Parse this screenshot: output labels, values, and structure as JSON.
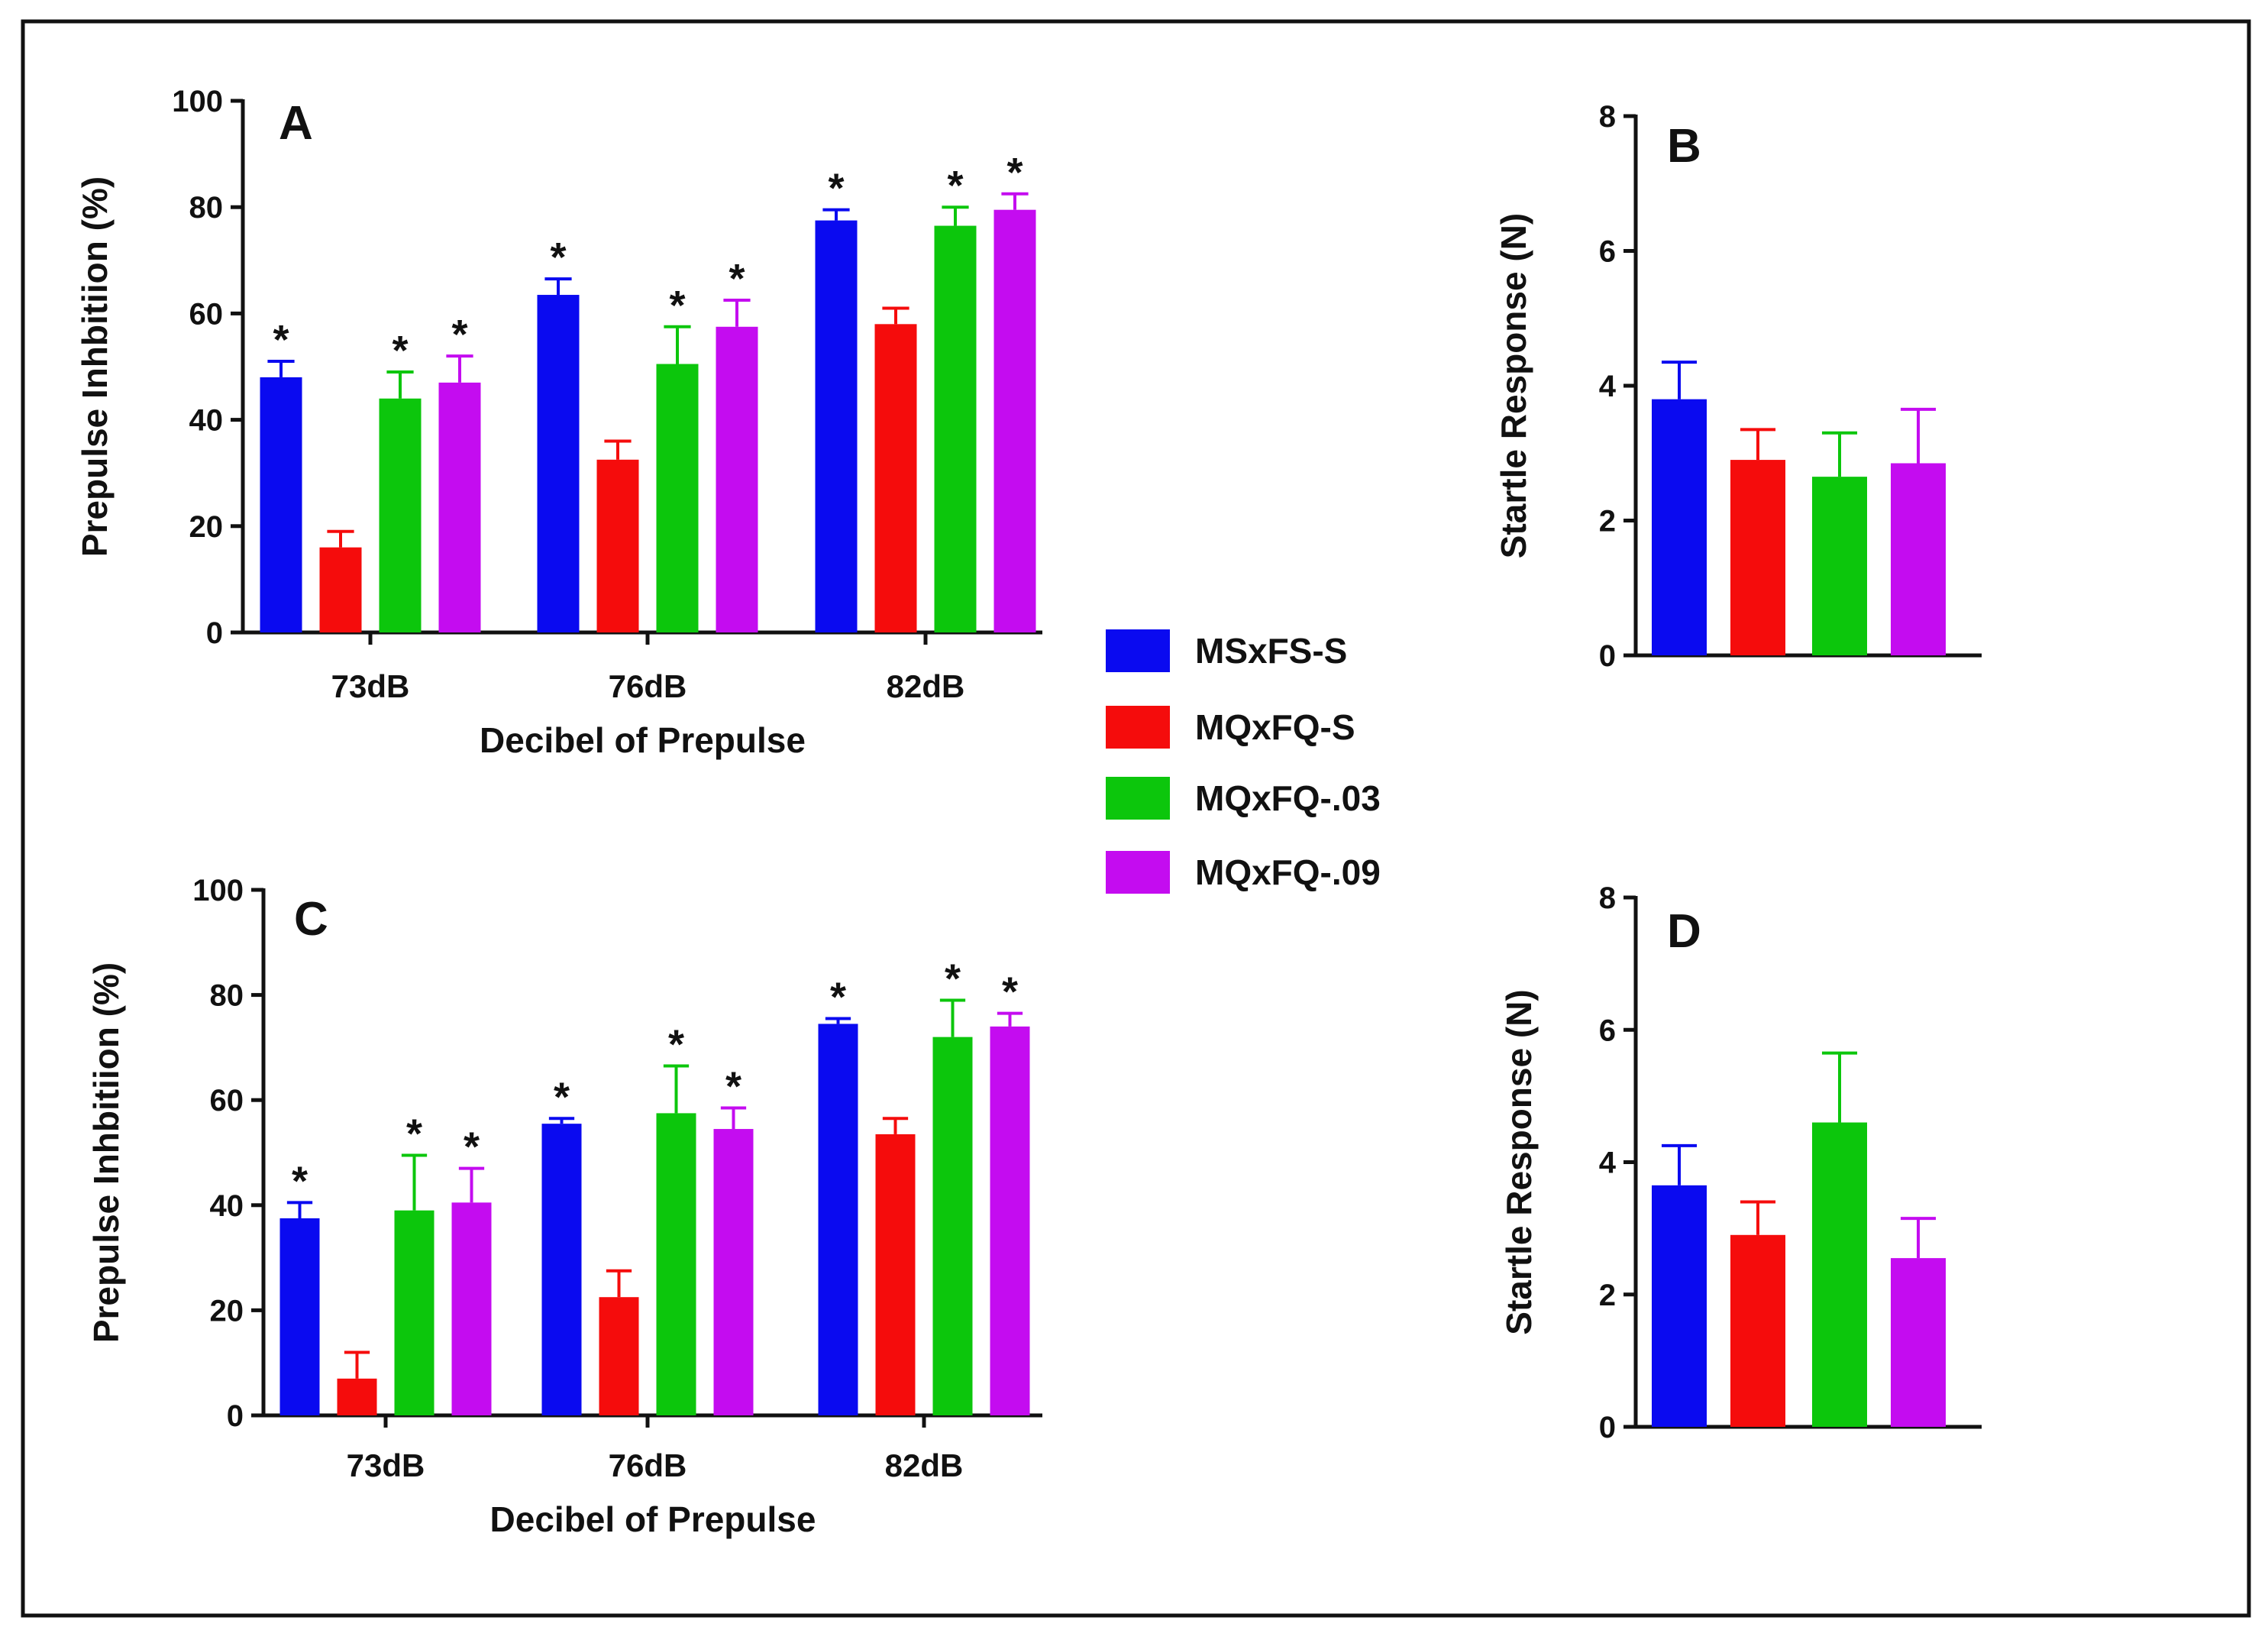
{
  "chart_data": [
    {
      "panel": "A",
      "type": "bar",
      "ylabel": "Prepulse Inhbitiion (%)",
      "xlabel": "Decibel of Prepulse",
      "categories": [
        "73dB",
        "76dB",
        "82dB"
      ],
      "ylim": [
        0,
        100
      ],
      "yticks": [
        "0",
        "20",
        "40",
        "60",
        "80",
        "100"
      ],
      "series": [
        {
          "name": "MSxFS-S",
          "values": [
            48,
            63.5,
            77.5
          ],
          "errors": [
            3,
            3,
            2
          ],
          "stars": [
            true,
            true,
            true
          ]
        },
        {
          "name": "MQxFQ-S",
          "values": [
            16,
            32.5,
            58
          ],
          "errors": [
            3,
            3.5,
            3
          ],
          "stars": [
            false,
            false,
            false
          ]
        },
        {
          "name": "MQxFQ-.03",
          "values": [
            44,
            50.5,
            76.5
          ],
          "errors": [
            5,
            7,
            3.5
          ],
          "stars": [
            true,
            true,
            true
          ]
        },
        {
          "name": "MQxFQ-.09",
          "values": [
            47,
            57.5,
            79.5
          ],
          "errors": [
            5,
            5,
            3
          ],
          "stars": [
            true,
            true,
            true
          ]
        }
      ]
    },
    {
      "panel": "B",
      "type": "bar",
      "ylabel": "Startle Response (N)",
      "categories": [
        "MSxFS-S",
        "MQxFQ-S",
        "MQxFQ-.03",
        "MQxFQ-.09"
      ],
      "ylim": [
        0,
        8
      ],
      "yticks": [
        "0",
        "2",
        "4",
        "6",
        "8"
      ],
      "values": [
        3.8,
        2.9,
        2.65,
        2.85
      ],
      "errors": [
        0.55,
        0.45,
        0.65,
        0.8
      ]
    },
    {
      "panel": "C",
      "type": "bar",
      "ylabel": "Prepulse Inhbitiion (%)",
      "xlabel": "Decibel of Prepulse",
      "categories": [
        "73dB",
        "76dB",
        "82dB"
      ],
      "ylim": [
        0,
        100
      ],
      "yticks": [
        "0",
        "20",
        "40",
        "60",
        "80",
        "100"
      ],
      "series": [
        {
          "name": "MSxFS-S",
          "values": [
            37.5,
            55.5,
            74.5
          ],
          "errors": [
            3,
            1,
            1
          ],
          "stars": [
            true,
            true,
            true
          ]
        },
        {
          "name": "MQxFQ-S",
          "values": [
            7,
            22.5,
            53.5
          ],
          "errors": [
            5,
            5,
            3
          ],
          "stars": [
            false,
            false,
            false
          ]
        },
        {
          "name": "MQxFQ-.03",
          "values": [
            39,
            57.5,
            72
          ],
          "errors": [
            10.5,
            9,
            7
          ],
          "stars": [
            true,
            true,
            true
          ]
        },
        {
          "name": "MQxFQ-.09",
          "values": [
            40.5,
            54.5,
            74
          ],
          "errors": [
            6.5,
            4,
            2.5
          ],
          "stars": [
            true,
            true,
            true
          ]
        }
      ]
    },
    {
      "panel": "D",
      "type": "bar",
      "ylabel": "Startle Response (N)",
      "categories": [
        "MSxFS-S",
        "MQxFQ-S",
        "MQxFQ-.03",
        "MQxFQ-.09"
      ],
      "ylim": [
        0,
        8
      ],
      "yticks": [
        "0",
        "2",
        "4",
        "6",
        "8"
      ],
      "values": [
        3.65,
        2.9,
        4.6,
        2.55
      ],
      "errors": [
        0.6,
        0.5,
        1.05,
        0.6
      ]
    }
  ],
  "legend": [
    {
      "name": "MSxFS-S",
      "color": "#0a0af0"
    },
    {
      "name": "MQxFQ-S",
      "color": "#f50c0c"
    },
    {
      "name": "MQxFQ-.03",
      "color": "#0cc60c"
    },
    {
      "name": "MQxFQ-.09",
      "color": "#c40cf0"
    }
  ],
  "star_symbol": "*"
}
